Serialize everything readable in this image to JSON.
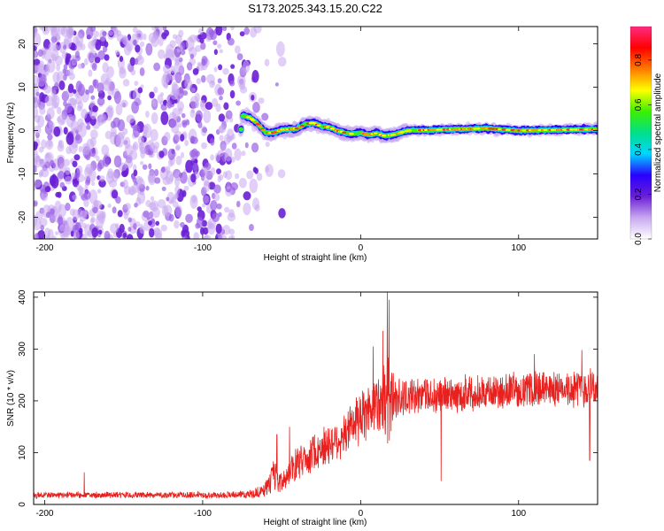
{
  "title": "S173.2025.343.15.20.C22",
  "chart_data": [
    {
      "type": "heatmap",
      "xlabel": "Height of straight line (km)",
      "ylabel": "Frequency (Hz)",
      "xlim": [
        -207,
        150
      ],
      "ylim": [
        -25,
        24
      ],
      "xticks": [
        -200,
        -100,
        0,
        100
      ],
      "yticks": [
        -20,
        -10,
        0,
        10,
        20
      ],
      "noise_region_x": [
        -207,
        -60
      ],
      "signal_track": [
        {
          "x": -75,
          "y": 3.5
        },
        {
          "x": -70,
          "y": 3.0
        },
        {
          "x": -65,
          "y": 1.5
        },
        {
          "x": -60,
          "y": -0.5
        },
        {
          "x": -55,
          "y": -0.5
        },
        {
          "x": -50,
          "y": 0.2
        },
        {
          "x": -45,
          "y": 0.3
        },
        {
          "x": -40,
          "y": 0.5
        },
        {
          "x": -35,
          "y": 1.5
        },
        {
          "x": -30,
          "y": 1.8
        },
        {
          "x": -25,
          "y": 1.0
        },
        {
          "x": -20,
          "y": 0.8
        },
        {
          "x": -15,
          "y": 0.0
        },
        {
          "x": -10,
          "y": -0.5
        },
        {
          "x": -5,
          "y": -0.8
        },
        {
          "x": 0,
          "y": -0.5
        },
        {
          "x": 5,
          "y": -1.0
        },
        {
          "x": 10,
          "y": -0.6
        },
        {
          "x": 15,
          "y": -1.2
        },
        {
          "x": 20,
          "y": -1.0
        },
        {
          "x": 25,
          "y": -0.5
        },
        {
          "x": 30,
          "y": 0.0
        },
        {
          "x": 50,
          "y": 0.2
        },
        {
          "x": 80,
          "y": 0.5
        },
        {
          "x": 100,
          "y": 0.0
        },
        {
          "x": 130,
          "y": 0.2
        },
        {
          "x": 150,
          "y": 0.3
        }
      ],
      "colorbar": {
        "label": "Normalized spectral amplitude",
        "ticks": [
          0.0,
          0.2,
          0.4,
          0.6,
          0.8
        ],
        "range": [
          0,
          0.95
        ],
        "colors": [
          "#ffffff",
          "#c8a8f0",
          "#6a1fd6",
          "#2a00ff",
          "#00d5ff",
          "#00e08a",
          "#3cf000",
          "#ffff00",
          "#ff7a00",
          "#ff0000",
          "#ff2a80"
        ]
      }
    },
    {
      "type": "line",
      "xlabel": "Height of straight line (km)",
      "ylabel": "SNR (10 * v/v)",
      "xlim": [
        -207,
        150
      ],
      "ylim": [
        0,
        410
      ],
      "xticks": [
        -200,
        -100,
        0,
        100
      ],
      "yticks": [
        0,
        100,
        200,
        300,
        400
      ],
      "color": "#e8201e",
      "series": [
        {
          "name": "SNR",
          "x": [
            -207,
            -180,
            -150,
            -120,
            -90,
            -70,
            -62,
            -58,
            -55,
            -52,
            -48,
            -45,
            -42,
            -40,
            -35,
            -30,
            -25,
            -20,
            -15,
            -10,
            -5,
            0,
            5,
            10,
            15,
            18,
            20,
            22,
            25,
            30,
            40,
            50,
            60,
            70,
            80,
            90,
            100,
            110,
            120,
            130,
            140,
            150
          ],
          "mean": [
            18,
            18,
            18,
            18,
            18,
            20,
            25,
            40,
            55,
            40,
            45,
            60,
            70,
            80,
            90,
            100,
            110,
            115,
            125,
            135,
            150,
            165,
            185,
            195,
            205,
            210,
            212,
            210,
            208,
            210,
            210,
            210,
            212,
            215,
            215,
            218,
            220,
            222,
            222,
            224,
            225,
            225
          ],
          "spread": [
            10,
            10,
            10,
            10,
            10,
            12,
            20,
            35,
            50,
            30,
            35,
            45,
            50,
            55,
            55,
            60,
            65,
            65,
            70,
            70,
            75,
            80,
            90,
            100,
            120,
            150,
            110,
            80,
            70,
            55,
            55,
            55,
            55,
            55,
            55,
            55,
            55,
            55,
            55,
            55,
            60,
            60
          ],
          "peaks": [
            {
              "x": 17,
              "y": 410
            },
            {
              "x": 18,
              "y": 395
            },
            {
              "x": 14,
              "y": 335
            },
            {
              "x": 8,
              "y": 305
            },
            {
              "x": -45,
              "y": 150
            },
            {
              "x": -53,
              "y": 135
            },
            {
              "x": 110,
              "y": 290
            },
            {
              "x": 140,
              "y": 298
            },
            {
              "x": 145,
              "y": 85
            },
            {
              "x": 51,
              "y": 45
            },
            {
              "x": -175,
              "y": 62
            }
          ]
        }
      ]
    }
  ]
}
